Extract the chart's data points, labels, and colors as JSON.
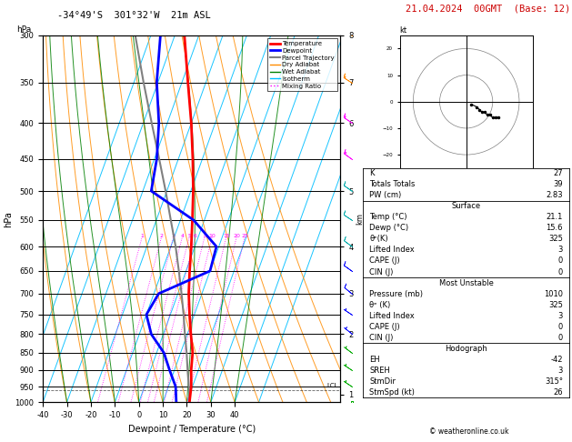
{
  "title_left": "-34°49'S  301°32'W  21m ASL",
  "date_str": "21.04.2024  00GMT  (Base: 12)",
  "xlabel": "Dewpoint / Temperature (°C)",
  "ylabel_left": "hPa",
  "pressure_ticks": [
    300,
    350,
    400,
    450,
    500,
    550,
    600,
    650,
    700,
    750,
    800,
    850,
    900,
    950,
    1000
  ],
  "temp_xlim": [
    -40,
    40
  ],
  "km_ticks": [
    1,
    2,
    3,
    4,
    5,
    6,
    7,
    8
  ],
  "km_pressures": [
    975,
    800,
    700,
    600,
    500,
    400,
    350,
    300
  ],
  "mr_lines_values": [
    1,
    2,
    3,
    4,
    5,
    6,
    8,
    10,
    15,
    20,
    25
  ],
  "mr_line_labels": [
    "1",
    "2",
    "3",
    "4",
    "5",
    "6",
    "8",
    "10",
    "15",
    "20",
    "25"
  ],
  "temperature_profile": {
    "pressure": [
      1000,
      950,
      900,
      850,
      800,
      750,
      700,
      650,
      600,
      550,
      500,
      450,
      400,
      350,
      300
    ],
    "temp": [
      21.1,
      19.5,
      17.0,
      15.0,
      11.5,
      8.0,
      4.5,
      1.5,
      -1.5,
      -5.0,
      -9.0,
      -14.0,
      -20.0,
      -27.5,
      -36.0
    ]
  },
  "dewpoint_profile": {
    "pressure": [
      1000,
      950,
      900,
      850,
      800,
      750,
      700,
      650,
      600,
      550,
      500,
      450,
      400,
      350,
      300
    ],
    "temp": [
      15.6,
      13.0,
      8.0,
      3.0,
      -5.0,
      -10.0,
      -8.0,
      10.0,
      9.0,
      -4.5,
      -26.5,
      -29.0,
      -33.5,
      -40.5,
      -46.0
    ]
  },
  "parcel_profile": {
    "pressure": [
      1000,
      950,
      900,
      850,
      800,
      750,
      700,
      650,
      600,
      550,
      500,
      450,
      400,
      350,
      300
    ],
    "temp": [
      21.1,
      18.5,
      15.5,
      12.5,
      9.0,
      5.5,
      1.5,
      -3.0,
      -8.0,
      -14.0,
      -20.5,
      -28.0,
      -36.5,
      -46.0,
      -56.5
    ]
  },
  "colors": {
    "temperature": "#ff0000",
    "dewpoint": "#0000ff",
    "parcel": "#808080",
    "dry_adiabat": "#ff8c00",
    "wet_adiabat": "#008000",
    "isotherm": "#00bfff",
    "mixing_ratio": "#ff00ff",
    "background": "#ffffff",
    "grid": "#000000"
  },
  "legend_entries": [
    {
      "label": "Temperature",
      "color": "#ff0000",
      "lw": 2,
      "ls": "-"
    },
    {
      "label": "Dewpoint",
      "color": "#0000ff",
      "lw": 2,
      "ls": "-"
    },
    {
      "label": "Parcel Trajectory",
      "color": "#808080",
      "lw": 1.5,
      "ls": "-"
    },
    {
      "label": "Dry Adiabat",
      "color": "#ff8c00",
      "lw": 1,
      "ls": "-"
    },
    {
      "label": "Wet Adiabat",
      "color": "#008000",
      "lw": 1,
      "ls": "-"
    },
    {
      "label": "Isotherm",
      "color": "#00bfff",
      "lw": 1,
      "ls": "-"
    },
    {
      "label": "Mixing Ratio",
      "color": "#ff00ff",
      "lw": 1,
      "ls": ":"
    }
  ],
  "stats_panel": {
    "K": 27,
    "Totals_Totals": 39,
    "PW_cm": 2.83,
    "Surface": {
      "Temp_C": 21.1,
      "Dewp_C": 15.6,
      "theta_e_K": 325,
      "Lifted_Index": 3,
      "CAPE_J": 0,
      "CIN_J": 0
    },
    "Most_Unstable": {
      "Pressure_mb": 1010,
      "theta_e_K": 325,
      "Lifted_Index": 3,
      "CAPE_J": 0,
      "CIN_J": 0
    },
    "Hodograph": {
      "EH": -42,
      "SREH": 3,
      "StmDir": "315°",
      "StmSpd_kt": 26
    }
  },
  "wind_barbs_pressures": [
    1000,
    950,
    900,
    850,
    800,
    750,
    700,
    650,
    600,
    550,
    500,
    450,
    400,
    350,
    300
  ],
  "wind_barbs_u": [
    2,
    3,
    3,
    4,
    5,
    6,
    6,
    7,
    8,
    9,
    10,
    11,
    12,
    14,
    15
  ],
  "wind_barbs_v": [
    -1,
    -2,
    -2,
    -3,
    -4,
    -4,
    -5,
    -5,
    -6,
    -6,
    -7,
    -8,
    -8,
    -9,
    -10
  ],
  "lcl_pressure": 962,
  "hodograph_u": [
    2,
    4,
    5,
    6,
    7,
    8,
    9,
    10,
    11,
    12
  ],
  "hodograph_v": [
    -1,
    -2,
    -3,
    -4,
    -4,
    -5,
    -5,
    -6,
    -6,
    -6
  ]
}
